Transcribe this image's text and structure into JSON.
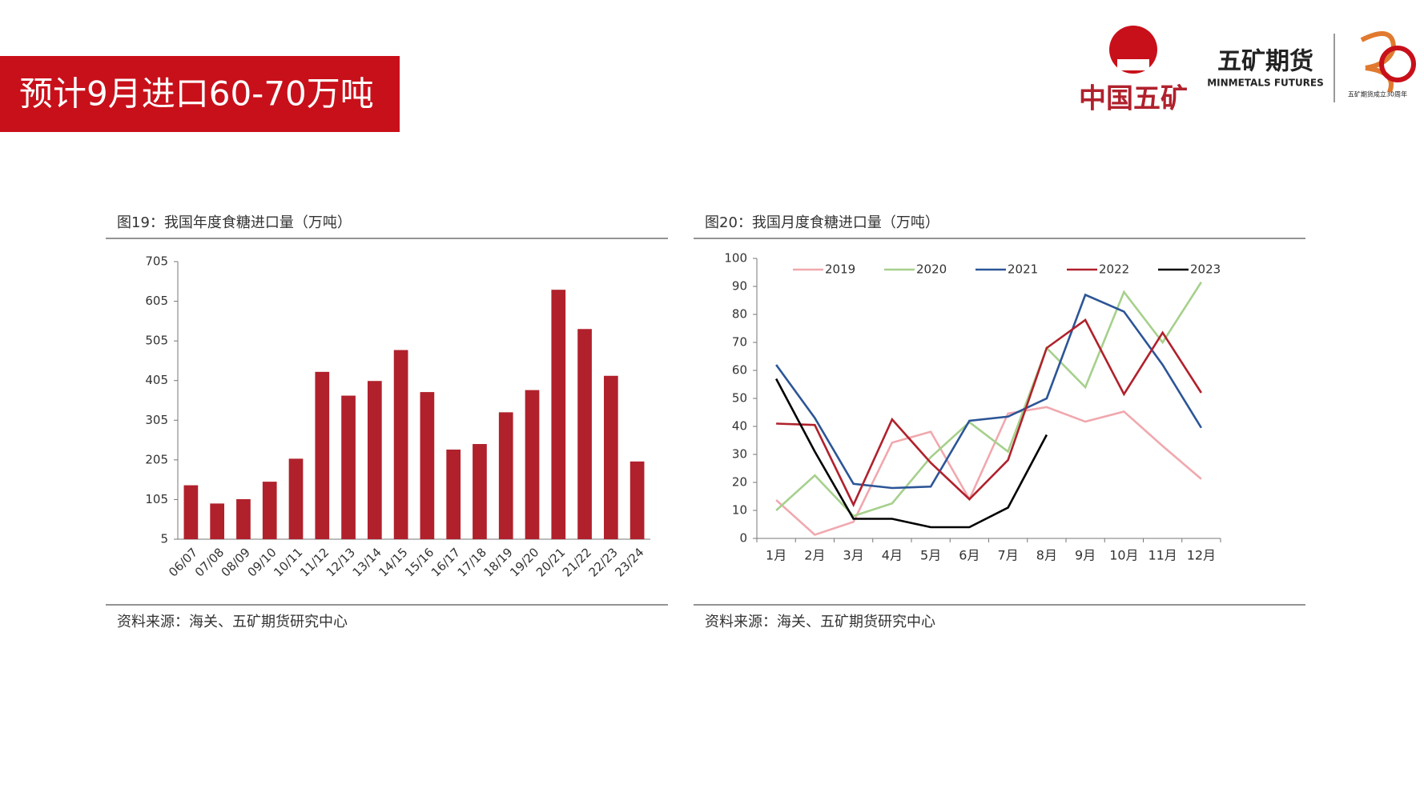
{
  "header": {
    "title": "预计9月进口60-70万吨",
    "logo_left": "中国五矿",
    "logo_name": "五矿期货",
    "logo_name_en": "MINMETALS FUTURES",
    "logo_anniversary": "五矿期货成立30周年"
  },
  "chart_data": [
    {
      "type": "bar",
      "title": "图19：我国年度食糖进口量（万吨）",
      "source": "资料来源：海关、五矿期货研究中心",
      "categories": [
        "06/07",
        "07/08",
        "08/09",
        "09/10",
        "10/11",
        "11/12",
        "12/13",
        "13/14",
        "14/15",
        "15/16",
        "16/17",
        "17/18",
        "18/19",
        "19/20",
        "20/21",
        "21/22",
        "22/23",
        "23/24"
      ],
      "values": [
        141,
        95,
        106,
        150,
        208,
        427,
        367,
        404,
        482,
        376,
        231,
        245,
        325,
        381,
        634,
        535,
        417,
        201
      ],
      "color": "#b0212c",
      "ylim": [
        5,
        705
      ],
      "yticks": [
        5,
        105,
        205,
        305,
        405,
        505,
        605,
        705
      ],
      "grid": false
    },
    {
      "type": "line",
      "title": "图20：我国月度食糖进口量（万吨）",
      "source": "资料来源：海关、五矿期货研究中心",
      "categories": [
        "1月",
        "2月",
        "3月",
        "4月",
        "5月",
        "6月",
        "7月",
        "8月",
        "9月",
        "10月",
        "11月",
        "12月"
      ],
      "ylim": [
        0,
        100
      ],
      "yticks": [
        0,
        10,
        20,
        30,
        40,
        50,
        60,
        70,
        80,
        90,
        100
      ],
      "grid": false,
      "legend": "top",
      "series": [
        {
          "name": "2019",
          "color": "#f0a8ae",
          "values": [
            13.7,
            1.3,
            5.9,
            34.2,
            38.1,
            14,
            44.6,
            46.9,
            41.7,
            45.3,
            33,
            21.2
          ]
        },
        {
          "name": "2020",
          "color": "#a6d08c",
          "values": [
            10,
            22.5,
            8,
            12.5,
            29,
            41.5,
            31,
            68,
            54,
            88,
            70,
            91.5
          ]
        },
        {
          "name": "2021",
          "color": "#2c5597",
          "values": [
            62,
            43,
            19.5,
            18,
            18.5,
            42,
            43.5,
            50,
            87,
            81,
            62,
            39.5
          ]
        },
        {
          "name": "2022",
          "color": "#b0212c",
          "values": [
            41,
            40.5,
            12,
            42.5,
            27,
            14,
            28,
            68,
            78,
            51.5,
            73.5,
            52
          ]
        },
        {
          "name": "2023",
          "color": "#000000",
          "values": [
            57,
            31,
            7,
            7,
            4,
            4,
            11,
            37,
            null,
            null,
            null,
            null
          ]
        }
      ]
    }
  ]
}
